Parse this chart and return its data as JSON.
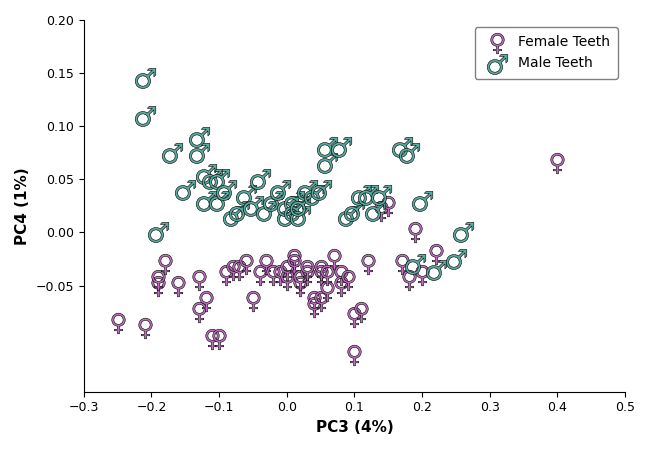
{
  "female_x": [
    -0.25,
    -0.21,
    -0.19,
    -0.19,
    -0.18,
    -0.16,
    -0.13,
    -0.13,
    -0.12,
    -0.11,
    -0.1,
    -0.09,
    -0.08,
    -0.07,
    -0.06,
    -0.05,
    -0.04,
    -0.03,
    -0.02,
    -0.01,
    0.0,
    0.0,
    0.01,
    0.01,
    0.02,
    0.02,
    0.03,
    0.03,
    0.04,
    0.04,
    0.05,
    0.05,
    0.05,
    0.06,
    0.06,
    0.07,
    0.08,
    0.08,
    0.09,
    0.1,
    0.1,
    0.11,
    0.12,
    0.14,
    0.15,
    0.17,
    0.18,
    0.19,
    0.2,
    0.22,
    0.4
  ],
  "female_y": [
    -0.085,
    -0.09,
    -0.05,
    -0.045,
    -0.03,
    -0.05,
    -0.045,
    -0.075,
    -0.065,
    -0.1,
    -0.1,
    -0.04,
    -0.035,
    -0.035,
    -0.03,
    -0.065,
    -0.04,
    -0.03,
    -0.04,
    -0.04,
    -0.045,
    -0.035,
    -0.025,
    -0.03,
    -0.05,
    -0.045,
    -0.04,
    -0.035,
    -0.065,
    -0.07,
    -0.065,
    -0.04,
    -0.035,
    -0.055,
    -0.04,
    -0.025,
    -0.04,
    -0.05,
    -0.045,
    -0.115,
    -0.08,
    -0.075,
    -0.03,
    0.02,
    0.025,
    -0.03,
    -0.045,
    0.0,
    -0.04,
    -0.02,
    0.065
  ],
  "male_x": [
    -0.21,
    -0.21,
    -0.19,
    -0.17,
    -0.15,
    -0.13,
    -0.13,
    -0.12,
    -0.12,
    -0.11,
    -0.1,
    -0.1,
    -0.09,
    -0.08,
    -0.07,
    -0.06,
    -0.05,
    -0.04,
    -0.03,
    -0.02,
    -0.01,
    0.0,
    0.0,
    0.01,
    0.01,
    0.02,
    0.02,
    0.03,
    0.04,
    0.05,
    0.06,
    0.06,
    0.08,
    0.09,
    0.1,
    0.11,
    0.12,
    0.13,
    0.14,
    0.17,
    0.18,
    0.19,
    0.2,
    0.22,
    0.25,
    0.26
  ],
  "male_y": [
    0.145,
    0.11,
    0.0,
    0.075,
    0.04,
    0.09,
    0.075,
    0.055,
    0.03,
    0.05,
    0.05,
    0.03,
    0.04,
    0.015,
    0.02,
    0.035,
    0.025,
    0.05,
    0.02,
    0.03,
    0.04,
    0.015,
    0.025,
    0.03,
    0.02,
    0.015,
    0.025,
    0.04,
    0.035,
    0.04,
    0.065,
    0.08,
    0.08,
    0.015,
    0.02,
    0.035,
    0.035,
    0.02,
    0.035,
    0.08,
    0.075,
    -0.03,
    0.03,
    -0.035,
    -0.025,
    0.0
  ],
  "female_color": "#c070c0",
  "male_color": "#5aaba0",
  "female_label": "Female Teeth",
  "male_label": "Male Teeth",
  "xlabel": "PC3 (4%)",
  "ylabel": "PC4 (1%)",
  "xlim": [
    -0.3,
    0.5
  ],
  "ylim": [
    -0.15,
    0.2
  ],
  "xticks": [
    -0.3,
    -0.2,
    -0.1,
    0.0,
    0.1,
    0.2,
    0.3,
    0.4,
    0.5
  ],
  "yticks": [
    -0.05,
    0.0,
    0.05,
    0.1,
    0.15,
    0.2
  ]
}
